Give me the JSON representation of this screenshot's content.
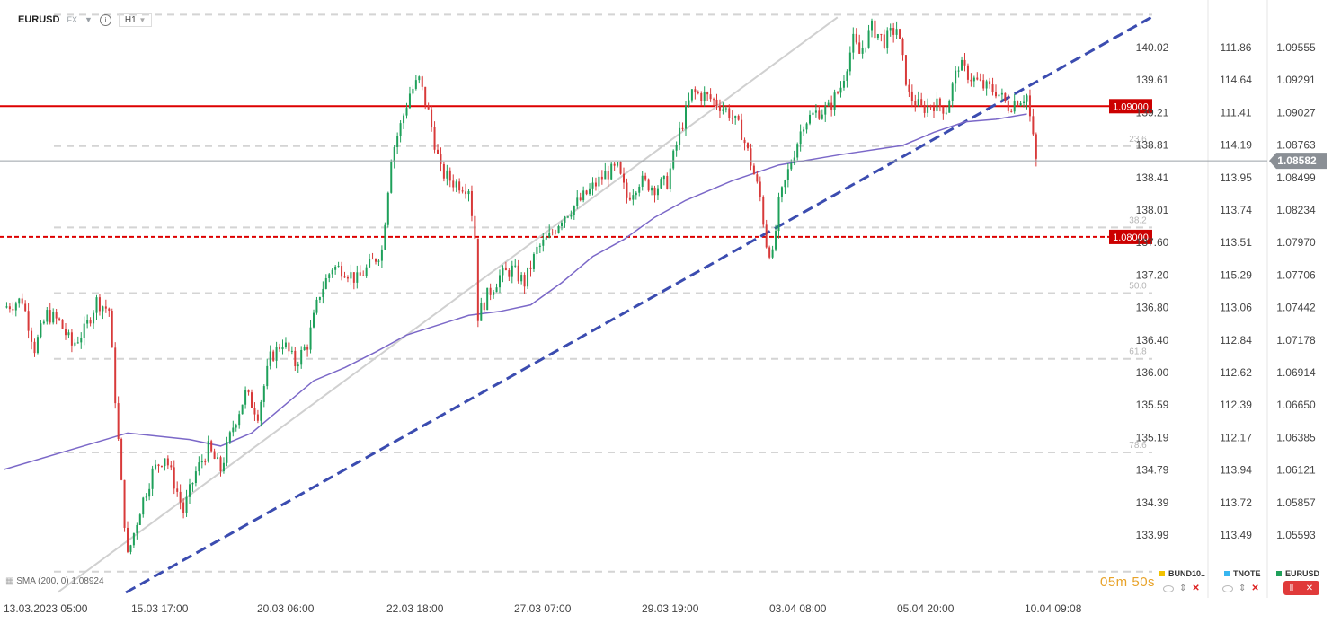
{
  "header": {
    "symbol": "EURUSD",
    "market": "FX",
    "timeframe": "H1"
  },
  "indicator_label": "SMA (200, 0) 1.08924",
  "countdown": "05m 50s",
  "legend": [
    {
      "label": "BUND10..",
      "color": "#f2c200"
    },
    {
      "label": "TNOTE",
      "color": "#38b6f0"
    },
    {
      "label": "EURUSD",
      "color": "#1ea05a"
    }
  ],
  "chart_data": {
    "type": "candlestick",
    "symbol": "EURUSD",
    "timeframe": "H1",
    "ylim": [
      1.0528,
      1.0973
    ],
    "x_ticks": [
      "13.03.2023  05:00",
      "15.03  17:00",
      "20.03  06:00",
      "22.03  18:00",
      "27.03  07:00",
      "29.03  19:00",
      "03.04  08:00",
      "05.04  20:00",
      "10.04  09:08"
    ],
    "y_axis_eurusd": [
      "1.09555",
      "1.09291",
      "1.09027",
      "1.08763",
      "1.08499",
      "1.08234",
      "1.07970",
      "1.07706",
      "1.07442",
      "1.07178",
      "1.06914",
      "1.06650",
      "1.06385",
      "1.06121",
      "1.05857",
      "1.05593"
    ],
    "y_axis_2": [
      "140.02",
      "139.61",
      "139.21",
      "138.81",
      "138.41",
      "138.01",
      "137.60",
      "137.20",
      "136.80",
      "136.40",
      "136.00",
      "135.59",
      "135.19",
      "134.79",
      "134.39",
      "133.99"
    ],
    "y_axis_3": [
      "111.86",
      "114.64",
      "111.41",
      "114.19",
      "113.95",
      "113.74",
      "113.51",
      "115.29",
      "113.06",
      "112.84",
      "112.62",
      "112.39",
      "112.17",
      "113.94",
      "113.72",
      "113.49"
    ],
    "current_price": "1.08582",
    "horizontal_levels": [
      {
        "label": "1.09000",
        "value": 1.09,
        "color": "#dd0000",
        "style": "solid"
      },
      {
        "label": "1.08000",
        "value": 1.08,
        "color": "#dd0000",
        "style": "dashed"
      }
    ],
    "fibonacci_levels": [
      "23.6",
      "38.2",
      "50.0",
      "61.8",
      "78.6"
    ],
    "fibonacci_range": [
      1.0544,
      1.097
    ],
    "trendline": {
      "from": [
        0,
        1.0528
      ],
      "to": [
        302,
        1.0968
      ],
      "color": "#3b4cb0",
      "style": "dashed"
    },
    "fib_anchor_line": {
      "from": [
        0,
        1.0528
      ],
      "to": [
        215,
        1.0968
      ]
    },
    "close_path": [
      [
        0,
        1.0746
      ],
      [
        6,
        1.0752
      ],
      [
        10,
        1.0715
      ],
      [
        14,
        1.0741
      ],
      [
        18,
        1.0735
      ],
      [
        22,
        1.0717
      ],
      [
        26,
        1.0728
      ],
      [
        30,
        1.0751
      ],
      [
        34,
        1.0744
      ],
      [
        38,
        1.061
      ],
      [
        40,
        1.0555
      ],
      [
        44,
        1.0592
      ],
      [
        48,
        1.062
      ],
      [
        52,
        1.0633
      ],
      [
        56,
        1.0605
      ],
      [
        58,
        1.059
      ],
      [
        62,
        1.062
      ],
      [
        66,
        1.0638
      ],
      [
        70,
        1.0622
      ],
      [
        74,
        1.0655
      ],
      [
        78,
        1.068
      ],
      [
        82,
        1.0665
      ],
      [
        86,
        1.0707
      ],
      [
        90,
        1.072
      ],
      [
        94,
        1.0703
      ],
      [
        98,
        1.0718
      ],
      [
        102,
        1.0757
      ],
      [
        106,
        1.0777
      ],
      [
        110,
        1.0775
      ],
      [
        114,
        1.0767
      ],
      [
        118,
        1.0778
      ],
      [
        122,
        1.079
      ],
      [
        125,
        1.0862
      ],
      [
        128,
        1.0885
      ],
      [
        131,
        1.091
      ],
      [
        134,
        1.092
      ],
      [
        137,
        1.0895
      ],
      [
        141,
        1.085
      ],
      [
        145,
        1.0842
      ],
      [
        150,
        1.0838
      ],
      [
        152,
        1.08
      ],
      [
        153,
        1.074
      ],
      [
        156,
        1.0755
      ],
      [
        160,
        1.077
      ],
      [
        164,
        1.0775
      ],
      [
        168,
        1.0765
      ],
      [
        172,
        1.079
      ],
      [
        176,
        1.08
      ],
      [
        180,
        1.0815
      ],
      [
        186,
        1.0828
      ],
      [
        190,
        1.0838
      ],
      [
        194,
        1.0848
      ],
      [
        198,
        1.0852
      ],
      [
        201,
        1.083
      ],
      [
        205,
        1.0843
      ],
      [
        210,
        1.0838
      ],
      [
        214,
        1.0842
      ],
      [
        218,
        1.088
      ],
      [
        222,
        1.091
      ],
      [
        226,
        1.0908
      ],
      [
        230,
        1.0903
      ],
      [
        234,
        1.0895
      ],
      [
        238,
        1.088
      ],
      [
        241,
        1.0857
      ],
      [
        244,
        1.083
      ],
      [
        246,
        1.0795
      ],
      [
        248,
        1.0785
      ],
      [
        250,
        1.0825
      ],
      [
        254,
        1.0858
      ],
      [
        258,
        1.0888
      ],
      [
        262,
        1.0895
      ],
      [
        266,
        1.0898
      ],
      [
        270,
        1.0915
      ],
      [
        274,
        1.095
      ],
      [
        276,
        1.094
      ],
      [
        280,
        1.096
      ],
      [
        284,
        1.095
      ],
      [
        288,
        1.096
      ],
      [
        292,
        1.0908
      ],
      [
        296,
        1.0898
      ],
      [
        300,
        1.0902
      ],
      [
        304,
        1.0898
      ],
      [
        308,
        1.0932
      ],
      [
        312,
        1.0922
      ],
      [
        316,
        1.0915
      ],
      [
        320,
        1.0912
      ],
      [
        324,
        1.09
      ],
      [
        327,
        1.0905
      ],
      [
        330,
        1.0908
      ],
      [
        333,
        1.0858
      ]
    ],
    "sma_200": [
      [
        0,
        1.0622
      ],
      [
        30,
        1.0643
      ],
      [
        40,
        1.065
      ],
      [
        60,
        1.0645
      ],
      [
        70,
        1.064
      ],
      [
        80,
        1.065
      ],
      [
        90,
        1.067
      ],
      [
        100,
        1.069
      ],
      [
        110,
        1.07
      ],
      [
        120,
        1.0712
      ],
      [
        130,
        1.0725
      ],
      [
        150,
        1.074
      ],
      [
        160,
        1.0743
      ],
      [
        170,
        1.0748
      ],
      [
        180,
        1.0765
      ],
      [
        190,
        1.0785
      ],
      [
        200,
        1.0798
      ],
      [
        210,
        1.0815
      ],
      [
        220,
        1.0828
      ],
      [
        235,
        1.0843
      ],
      [
        250,
        1.0855
      ],
      [
        270,
        1.0863
      ],
      [
        290,
        1.087
      ],
      [
        300,
        1.088
      ],
      [
        310,
        1.0888
      ],
      [
        320,
        1.089
      ],
      [
        330,
        1.0894
      ]
    ]
  }
}
